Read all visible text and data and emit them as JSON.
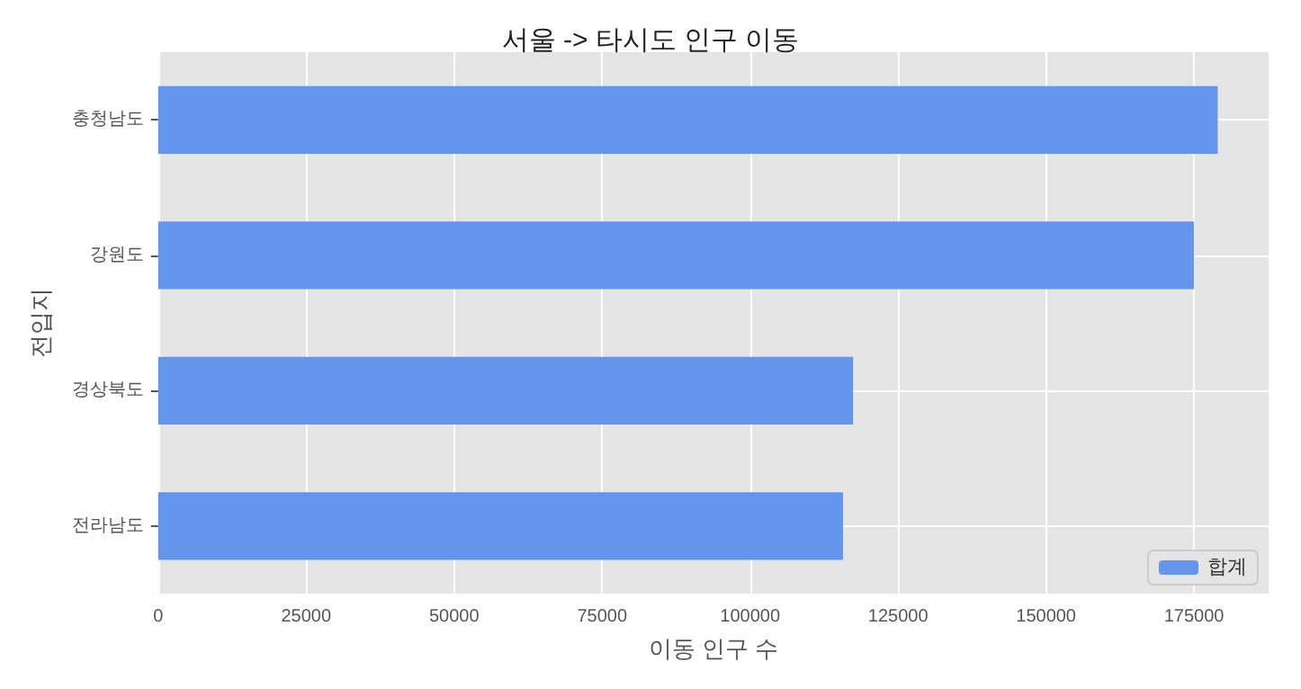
{
  "chart_data": {
    "type": "bar",
    "orientation": "horizontal",
    "title": "서울 -> 타시도 인구 이동",
    "xlabel": "이동 인구 수",
    "ylabel": "전입지",
    "categories": [
      "충청남도",
      "강원도",
      "경상북도",
      "전라남도"
    ],
    "series": [
      {
        "name": "합계",
        "color": "#6495ed",
        "values": [
          179000,
          175000,
          117400,
          115700
        ]
      }
    ],
    "xlim": [
      0,
      187600
    ],
    "xticks": [
      0,
      25000,
      50000,
      75000,
      100000,
      125000,
      150000,
      175000
    ],
    "grid": true,
    "legend": "bottom right"
  }
}
